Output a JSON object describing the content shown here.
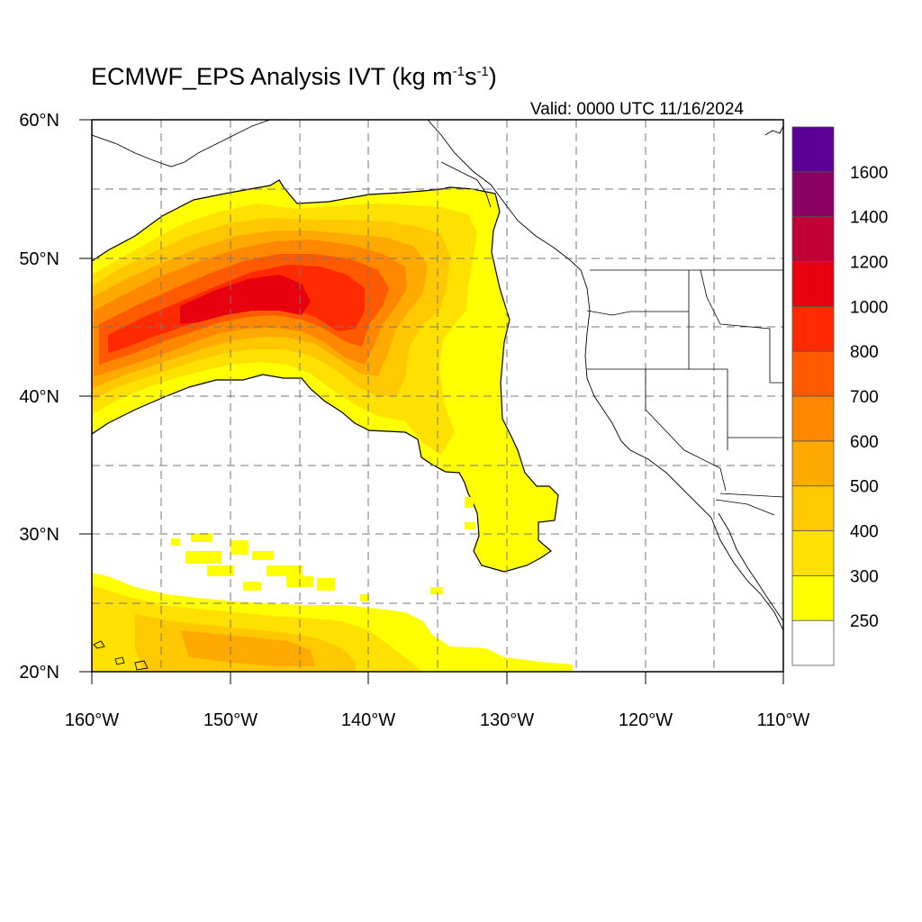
{
  "title": {
    "prefix": "ECMWF_EPS Analysis IVT (kg m",
    "exp1": "-1",
    "mid": "s",
    "exp2": "-1",
    "suffix": ")"
  },
  "valid_text": "Valid: 0000 UTC 11/16/2024",
  "axes": {
    "lat_labels": [
      "60°N",
      "50°N",
      "40°N",
      "30°N",
      "20°N"
    ],
    "lon_labels": [
      "160°W",
      "150°W",
      "140°W",
      "130°W",
      "120°W",
      "110°W"
    ],
    "lat_range": [
      20,
      60
    ],
    "lon_range": [
      -160,
      -110
    ],
    "grid": "dashed every 5°"
  },
  "colorbar": {
    "labels": [
      "250",
      "300",
      "400",
      "500",
      "600",
      "700",
      "800",
      "1000",
      "1200",
      "1400",
      "1600"
    ],
    "colors": [
      "#ffffff",
      "#ffff00",
      "#ffe100",
      "#ffc800",
      "#ffaa00",
      "#ff8800",
      "#ff5a00",
      "#ff2a00",
      "#e8000e",
      "#c20038",
      "#8a0064",
      "#5a0094"
    ]
  },
  "regions": {
    "main_river": "Atmospheric river plume from ~160°W 42–50°N extending NE to the Pacific Northwest coast (~55°N 135°W) then south along 130°W to ~27°N",
    "core_max_band": "1000"
  }
}
